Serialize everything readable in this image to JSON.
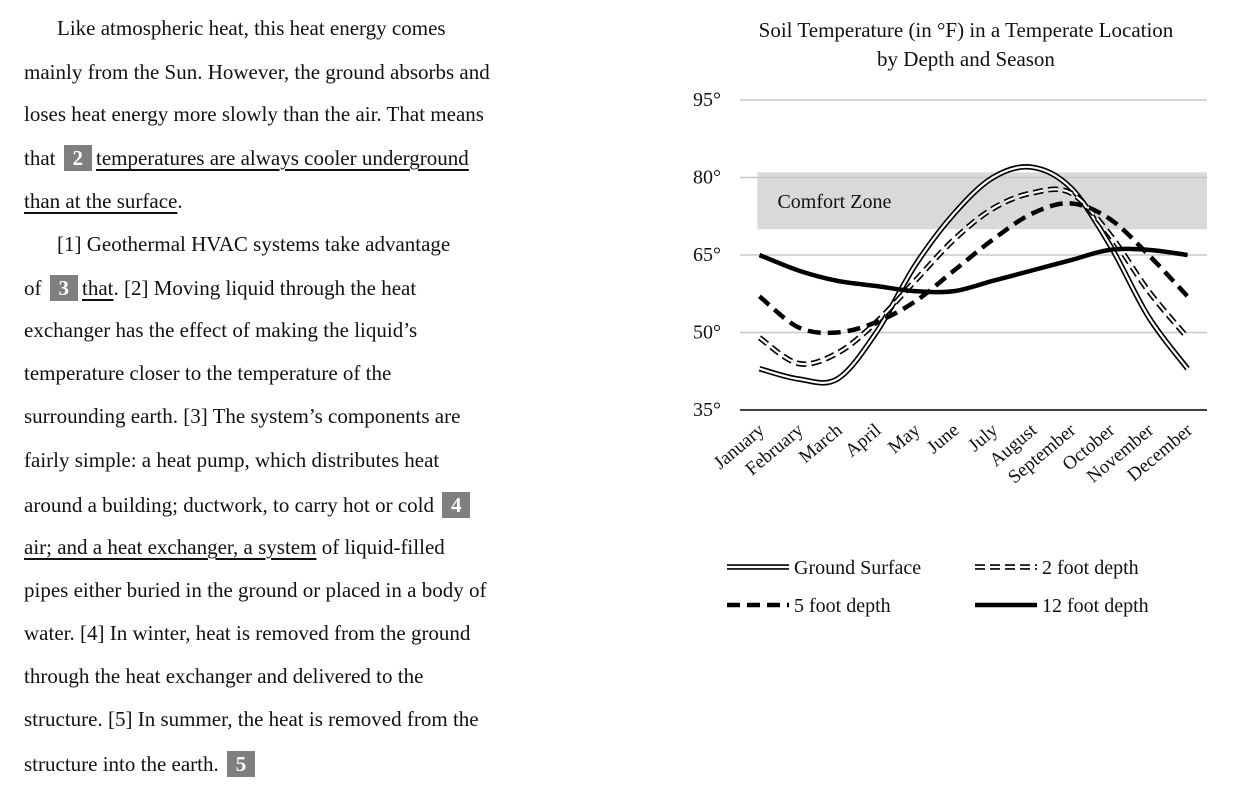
{
  "passage": {
    "lines": [
      [
        "Like atmospheric heat, this heat energy comes"
      ],
      [
        "mainly from the Sun. However, the ground absorbs and"
      ],
      [
        "loses heat energy more slowly than the air. That means"
      ],
      [
        "that",
        "2",
        "temperatures are always cooler underground"
      ],
      [
        "than at the surface",
        "."
      ],
      [
        "[1] Geothermal HVAC systems take advantage"
      ],
      [
        "of",
        "3",
        "that",
        ". [2] Moving liquid through the heat"
      ],
      [
        "exchanger has the effect of making the liquid’s"
      ],
      [
        "temperature closer to the temperature of the"
      ],
      [
        "surrounding earth. [3] The system’s components are"
      ],
      [
        "fairly simple: a heat pump, which distributes heat"
      ],
      [
        "around a building; ductwork, to carry hot or cold",
        "4"
      ],
      [
        "air; and a heat exchanger, a system",
        " of liquid-filled"
      ],
      [
        "pipes either buried in the ground or placed in a body of"
      ],
      [
        "water. [4] In winter, heat is removed from the ground"
      ],
      [
        "through the heat exchanger and delivered to the"
      ],
      [
        "structure. [5] In summer, the heat is removed from the"
      ],
      [
        "structure into the earth.",
        "5"
      ]
    ]
  },
  "chart_data": {
    "type": "line",
    "title": "Soil Temperature (in °F) in a Temperate Location by Depth and Season",
    "categories": [
      "January",
      "February",
      "March",
      "April",
      "May",
      "June",
      "July",
      "August",
      "September",
      "October",
      "November",
      "December"
    ],
    "ylim": [
      35,
      95
    ],
    "yticks": [
      {
        "value": 35,
        "label": "35°"
      },
      {
        "value": 50,
        "label": "50°"
      },
      {
        "value": 65,
        "label": "65°"
      },
      {
        "value": 80,
        "label": "80°"
      },
      {
        "value": 95,
        "label": "95°"
      }
    ],
    "grid": true,
    "annotations": [
      {
        "text": "Comfort Zone",
        "range": [
          70,
          81
        ]
      }
    ],
    "series": [
      {
        "name": "Ground Surface",
        "color": "#000000",
        "style": "double",
        "values": [
          43,
          41,
          41,
          50,
          63,
          73,
          80,
          82,
          78,
          67,
          53,
          43
        ]
      },
      {
        "name": "2 foot depth",
        "color": "#000000",
        "style": "double-dashed",
        "values": [
          49,
          44,
          46,
          52,
          60,
          68,
          74,
          77,
          77,
          69,
          58,
          49
        ]
      },
      {
        "name": "5 foot depth",
        "color": "#000000",
        "style": "dashed",
        "values": [
          57,
          51,
          50,
          52,
          56,
          62,
          68,
          73,
          75,
          72,
          65,
          57
        ]
      },
      {
        "name": "12 foot depth",
        "color": "#000000",
        "style": "solid",
        "values": [
          65,
          62,
          60,
          59,
          58,
          58,
          60,
          62,
          64,
          66,
          66,
          65
        ]
      }
    ]
  }
}
